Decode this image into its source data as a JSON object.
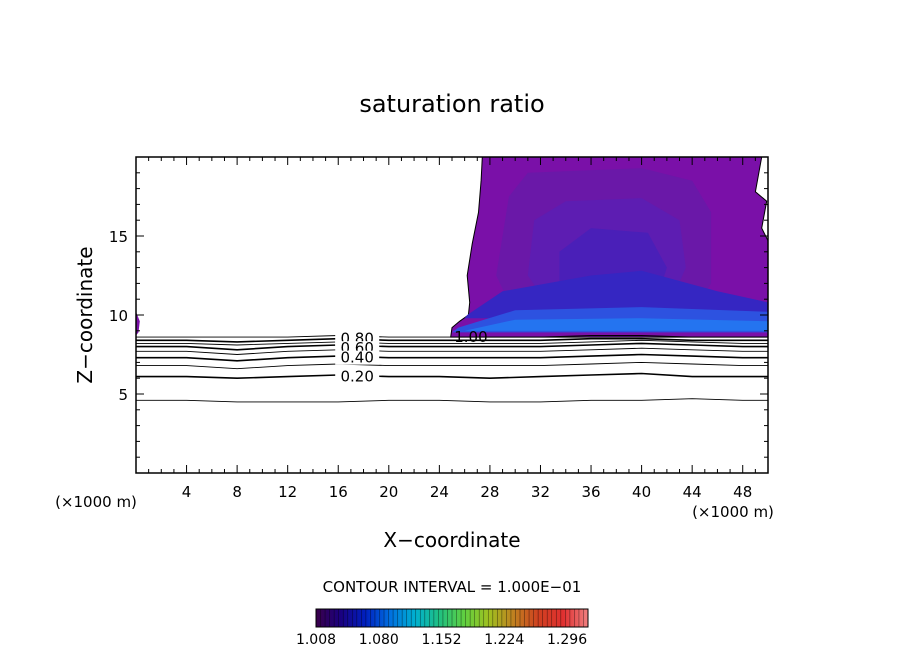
{
  "chart_data": {
    "type": "contour",
    "title": "saturation ratio",
    "xlabel": "X−coordinate",
    "ylabel": "Z−coordinate",
    "x_unit_label": "(×1000 m)",
    "y_unit_label": "(×1000 m)",
    "xlim": [
      0,
      50
    ],
    "ylim": [
      0,
      20
    ],
    "x_ticks": [
      4,
      8,
      12,
      16,
      20,
      24,
      28,
      32,
      36,
      40,
      44,
      48
    ],
    "y_ticks": [
      5,
      10,
      15
    ],
    "x_tick_labels": [
      "4",
      "8",
      "12",
      "16",
      "20",
      "24",
      "28",
      "32",
      "36",
      "40",
      "44",
      "48"
    ],
    "y_tick_labels": [
      "5",
      "10",
      "15"
    ],
    "contour_interval_text": "CONTOUR INTERVAL = 1.000E−01",
    "contour_levels": [
      {
        "value": 0.1,
        "z": [
          4.6,
          4.6,
          4.5,
          4.5,
          4.5,
          4.6,
          4.6,
          4.5,
          4.5,
          4.6,
          4.6,
          4.7,
          4.6,
          4.6
        ]
      },
      {
        "value": 0.2,
        "z": [
          6.1,
          6.1,
          6.0,
          6.1,
          6.2,
          6.1,
          6.1,
          6.0,
          6.1,
          6.2,
          6.3,
          6.1,
          6.1,
          6.1
        ]
      },
      {
        "value": 0.3,
        "z": [
          6.8,
          6.8,
          6.6,
          6.8,
          6.9,
          6.8,
          6.8,
          6.8,
          6.8,
          6.9,
          7.0,
          6.9,
          6.8,
          6.8
        ]
      },
      {
        "value": 0.4,
        "z": [
          7.3,
          7.3,
          7.1,
          7.3,
          7.4,
          7.3,
          7.3,
          7.3,
          7.3,
          7.4,
          7.5,
          7.4,
          7.3,
          7.3
        ]
      },
      {
        "value": 0.5,
        "z": [
          7.7,
          7.7,
          7.5,
          7.7,
          7.8,
          7.7,
          7.7,
          7.7,
          7.7,
          7.8,
          7.9,
          7.8,
          7.7,
          7.7
        ]
      },
      {
        "value": 0.6,
        "z": [
          8.0,
          8.0,
          7.8,
          8.0,
          8.1,
          8.0,
          8.0,
          8.0,
          8.0,
          8.1,
          8.2,
          8.1,
          8.0,
          8.0
        ]
      },
      {
        "value": 0.7,
        "z": [
          8.2,
          8.2,
          8.1,
          8.2,
          8.3,
          8.2,
          8.2,
          8.2,
          8.2,
          8.3,
          8.4,
          8.3,
          8.2,
          8.2
        ]
      },
      {
        "value": 0.8,
        "z": [
          8.4,
          8.4,
          8.3,
          8.4,
          8.5,
          8.4,
          8.4,
          8.4,
          8.4,
          8.5,
          8.5,
          8.4,
          8.4,
          8.4
        ]
      },
      {
        "value": 0.9,
        "z": [
          8.6,
          8.6,
          8.6,
          8.6,
          8.7,
          8.6,
          8.6,
          8.6,
          8.6,
          8.7,
          8.7,
          8.6,
          8.6,
          8.6
        ]
      }
    ],
    "contour_x": [
      0,
      4,
      8,
      12,
      16,
      20,
      24,
      28,
      32,
      36,
      40,
      44,
      48,
      50
    ],
    "contour_labels": [
      {
        "text": "0.80",
        "x": 17.5,
        "z": 8.5
      },
      {
        "text": "0.60",
        "x": 17.5,
        "z": 7.9
      },
      {
        "text": "0.40",
        "x": 17.5,
        "z": 7.3
      },
      {
        "text": "0.20",
        "x": 17.5,
        "z": 6.1
      },
      {
        "text": "1.00",
        "x": 26.5,
        "z": 8.6
      }
    ],
    "supersaturated_region": {
      "outline": [
        [
          24.9,
          8.6
        ],
        [
          25.0,
          9.2
        ],
        [
          25.6,
          9.6
        ],
        [
          26.3,
          10.0
        ],
        [
          26.4,
          10.8
        ],
        [
          26.2,
          12.5
        ],
        [
          26.6,
          14.5
        ],
        [
          27.1,
          16.5
        ],
        [
          27.3,
          18.5
        ],
        [
          27.4,
          20.0
        ],
        [
          49.5,
          20.0
        ],
        [
          49.0,
          17.8
        ],
        [
          49.9,
          17.2
        ],
        [
          49.5,
          15.5
        ],
        [
          50.0,
          14.7
        ],
        [
          50.0,
          8.6
        ]
      ],
      "left_edge_blob": [
        [
          0,
          8.7
        ],
        [
          0,
          10.2
        ],
        [
          0.3,
          9.6
        ],
        [
          0.2,
          8.9
        ]
      ],
      "fills": [
        {
          "color": "#6a18a8",
          "polygon": [
            [
              29.5,
              17.5
            ],
            [
              31,
              19
            ],
            [
              40,
              19.3
            ],
            [
              44,
              18.5
            ],
            [
              45.5,
              16.5
            ],
            [
              45.5,
              12
            ],
            [
              44,
              10
            ],
            [
              30,
              10
            ],
            [
              28.5,
              12.5
            ]
          ]
        },
        {
          "color": "#5d1db2",
          "polygon": [
            [
              31.5,
              16
            ],
            [
              34,
              17.2
            ],
            [
              40,
              17.4
            ],
            [
              43,
              16
            ],
            [
              43.5,
              13
            ],
            [
              42,
              10.2
            ],
            [
              33,
              10.2
            ],
            [
              31,
              12.5
            ]
          ]
        },
        {
          "color": "#4a1fb8",
          "polygon": [
            [
              33.5,
              14
            ],
            [
              36,
              15.5
            ],
            [
              40.5,
              15.2
            ],
            [
              42,
              13
            ],
            [
              41,
              10.5
            ],
            [
              35,
              10.5
            ],
            [
              33.5,
              12
            ]
          ]
        },
        {
          "color": "#3526c2",
          "polygon": [
            [
              26.2,
              10
            ],
            [
              29,
              11.5
            ],
            [
              36,
              12.5
            ],
            [
              40,
              12.8
            ],
            [
              46,
              11.5
            ],
            [
              50,
              10.8
            ],
            [
              50,
              9.8
            ],
            [
              26,
              9.8
            ]
          ]
        },
        {
          "color": "#2d52e0",
          "polygon": [
            [
              25.5,
              9.2
            ],
            [
              30,
              10.3
            ],
            [
              40,
              10.5
            ],
            [
              50,
              10.2
            ],
            [
              50,
              8.9
            ],
            [
              25,
              8.9
            ]
          ]
        },
        {
          "color": "#2474f0",
          "polygon": [
            [
              26,
              9.0
            ],
            [
              30,
              9.7
            ],
            [
              40,
              9.8
            ],
            [
              50,
              9.6
            ],
            [
              50,
              9.0
            ],
            [
              26,
              9.0
            ]
          ]
        }
      ]
    },
    "colorbar": {
      "tick_labels": [
        "1.008",
        "1.080",
        "1.152",
        "1.224",
        "1.296"
      ],
      "range": [
        1.008,
        1.32
      ],
      "colors": [
        "#3a004a",
        "#1a0080",
        "#0020c0",
        "#0070e0",
        "#00b0d0",
        "#20c080",
        "#60d040",
        "#a0c020",
        "#c08020",
        "#d04020",
        "#e03030",
        "#f08080"
      ]
    },
    "grid": false
  }
}
